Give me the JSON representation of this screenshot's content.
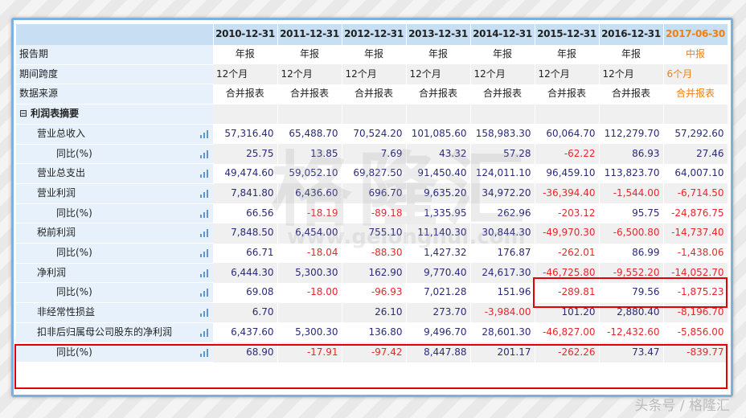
{
  "header": {
    "periods": [
      "2010-12-31",
      "2011-12-31",
      "2012-12-31",
      "2013-12-31",
      "2014-12-31",
      "2015-12-31",
      "2016-12-31",
      "2017-06-30"
    ],
    "highlight_color": "#f08010"
  },
  "rows": [
    {
      "label": "报告期",
      "level": 0,
      "type": "text",
      "chart": false,
      "values": [
        "年报",
        "年报",
        "年报",
        "年报",
        "年报",
        "年报",
        "年报",
        "中报"
      ]
    },
    {
      "label": "期间跨度",
      "level": 0,
      "type": "text",
      "align": "left",
      "chart": false,
      "values": [
        "12个月",
        "12个月",
        "12个月",
        "12个月",
        "12个月",
        "12个月",
        "12个月",
        "6个月"
      ]
    },
    {
      "label": "数据来源",
      "level": 0,
      "type": "text",
      "chart": false,
      "values": [
        "合并报表",
        "合并报表",
        "合并报表",
        "合并报表",
        "合并报表",
        "合并报表",
        "合并报表",
        "合并报表"
      ]
    },
    {
      "label": "利润表摘要",
      "level": 0,
      "type": "section",
      "collapse_icon": "⊟",
      "chart": false,
      "values": []
    },
    {
      "label": "营业总收入",
      "level": 1,
      "type": "num",
      "chart": true,
      "values": [
        "57,316.40",
        "65,488.70",
        "70,524.20",
        "101,085.60",
        "158,983.30",
        "60,064.70",
        "112,279.70",
        "57,292.60"
      ]
    },
    {
      "label": "同比(%)",
      "level": 2,
      "type": "num",
      "chart": true,
      "values": [
        "25.75",
        "13.85",
        "7.69",
        "43.32",
        "57.28",
        "-62.22",
        "86.93",
        "27.46"
      ]
    },
    {
      "label": "营业总支出",
      "level": 1,
      "type": "num",
      "chart": true,
      "values": [
        "49,474.60",
        "59,052.10",
        "69,827.50",
        "91,450.40",
        "124,011.10",
        "96,459.10",
        "113,823.70",
        "64,007.10"
      ]
    },
    {
      "label": "营业利润",
      "level": 1,
      "type": "num",
      "chart": true,
      "values": [
        "7,841.80",
        "6,436.60",
        "696.70",
        "9,635.20",
        "34,972.20",
        "-36,394.40",
        "-1,544.00",
        "-6,714.50"
      ]
    },
    {
      "label": "同比(%)",
      "level": 2,
      "type": "num",
      "chart": true,
      "values": [
        "66.56",
        "-18.19",
        "-89.18",
        "1,335.95",
        "262.96",
        "-203.12",
        "95.75",
        "-24,876.75"
      ]
    },
    {
      "label": "税前利润",
      "level": 1,
      "type": "num",
      "chart": true,
      "values": [
        "7,848.50",
        "6,454.00",
        "755.10",
        "11,140.30",
        "30,844.30",
        "-49,970.30",
        "-6,500.80",
        "-14,737.40"
      ]
    },
    {
      "label": "同比(%)",
      "level": 2,
      "type": "num",
      "chart": true,
      "values": [
        "66.71",
        "-18.04",
        "-88.30",
        "1,427.32",
        "176.87",
        "-262.01",
        "86.99",
        "-1,438.06"
      ]
    },
    {
      "label": "净利润",
      "level": 1,
      "type": "num",
      "chart": true,
      "values": [
        "6,444.30",
        "5,300.30",
        "162.90",
        "9,770.40",
        "24,617.30",
        "-46,725.80",
        "-9,552.20",
        "-14,052.70"
      ]
    },
    {
      "label": "同比(%)",
      "level": 2,
      "type": "num",
      "chart": true,
      "values": [
        "69.08",
        "-18.00",
        "-96.93",
        "7,021.28",
        "151.96",
        "-289.81",
        "79.56",
        "-1,875.23"
      ]
    },
    {
      "label": "非经常性损益",
      "level": 1,
      "type": "num",
      "chart": true,
      "values": [
        "6.70",
        "",
        "26.10",
        "273.70",
        "-3,984.00",
        "101.20",
        "2,880.40",
        "-8,196.70"
      ]
    },
    {
      "label": "扣非后归属母公司股东的净利润",
      "level": 1,
      "type": "num",
      "chart": true,
      "values": [
        "6,437.60",
        "5,300.30",
        "136.80",
        "9,496.70",
        "28,601.30",
        "-46,827.00",
        "-12,432.60",
        "-5,856.00"
      ]
    },
    {
      "label": "同比(%)",
      "level": 2,
      "type": "num",
      "chart": true,
      "values": [
        "68.90",
        "-17.91",
        "-97.42",
        "8,447.88",
        "201.17",
        "-262.26",
        "73.47",
        "-839.77"
      ]
    }
  ],
  "watermark": {
    "text": "格隆汇",
    "url": "www.gelonghui.com"
  },
  "credit": "头条号 / 格隆汇",
  "colors": {
    "negative": "#e8262a",
    "positive": "#2a2a7a",
    "annotation": "#e30000"
  }
}
